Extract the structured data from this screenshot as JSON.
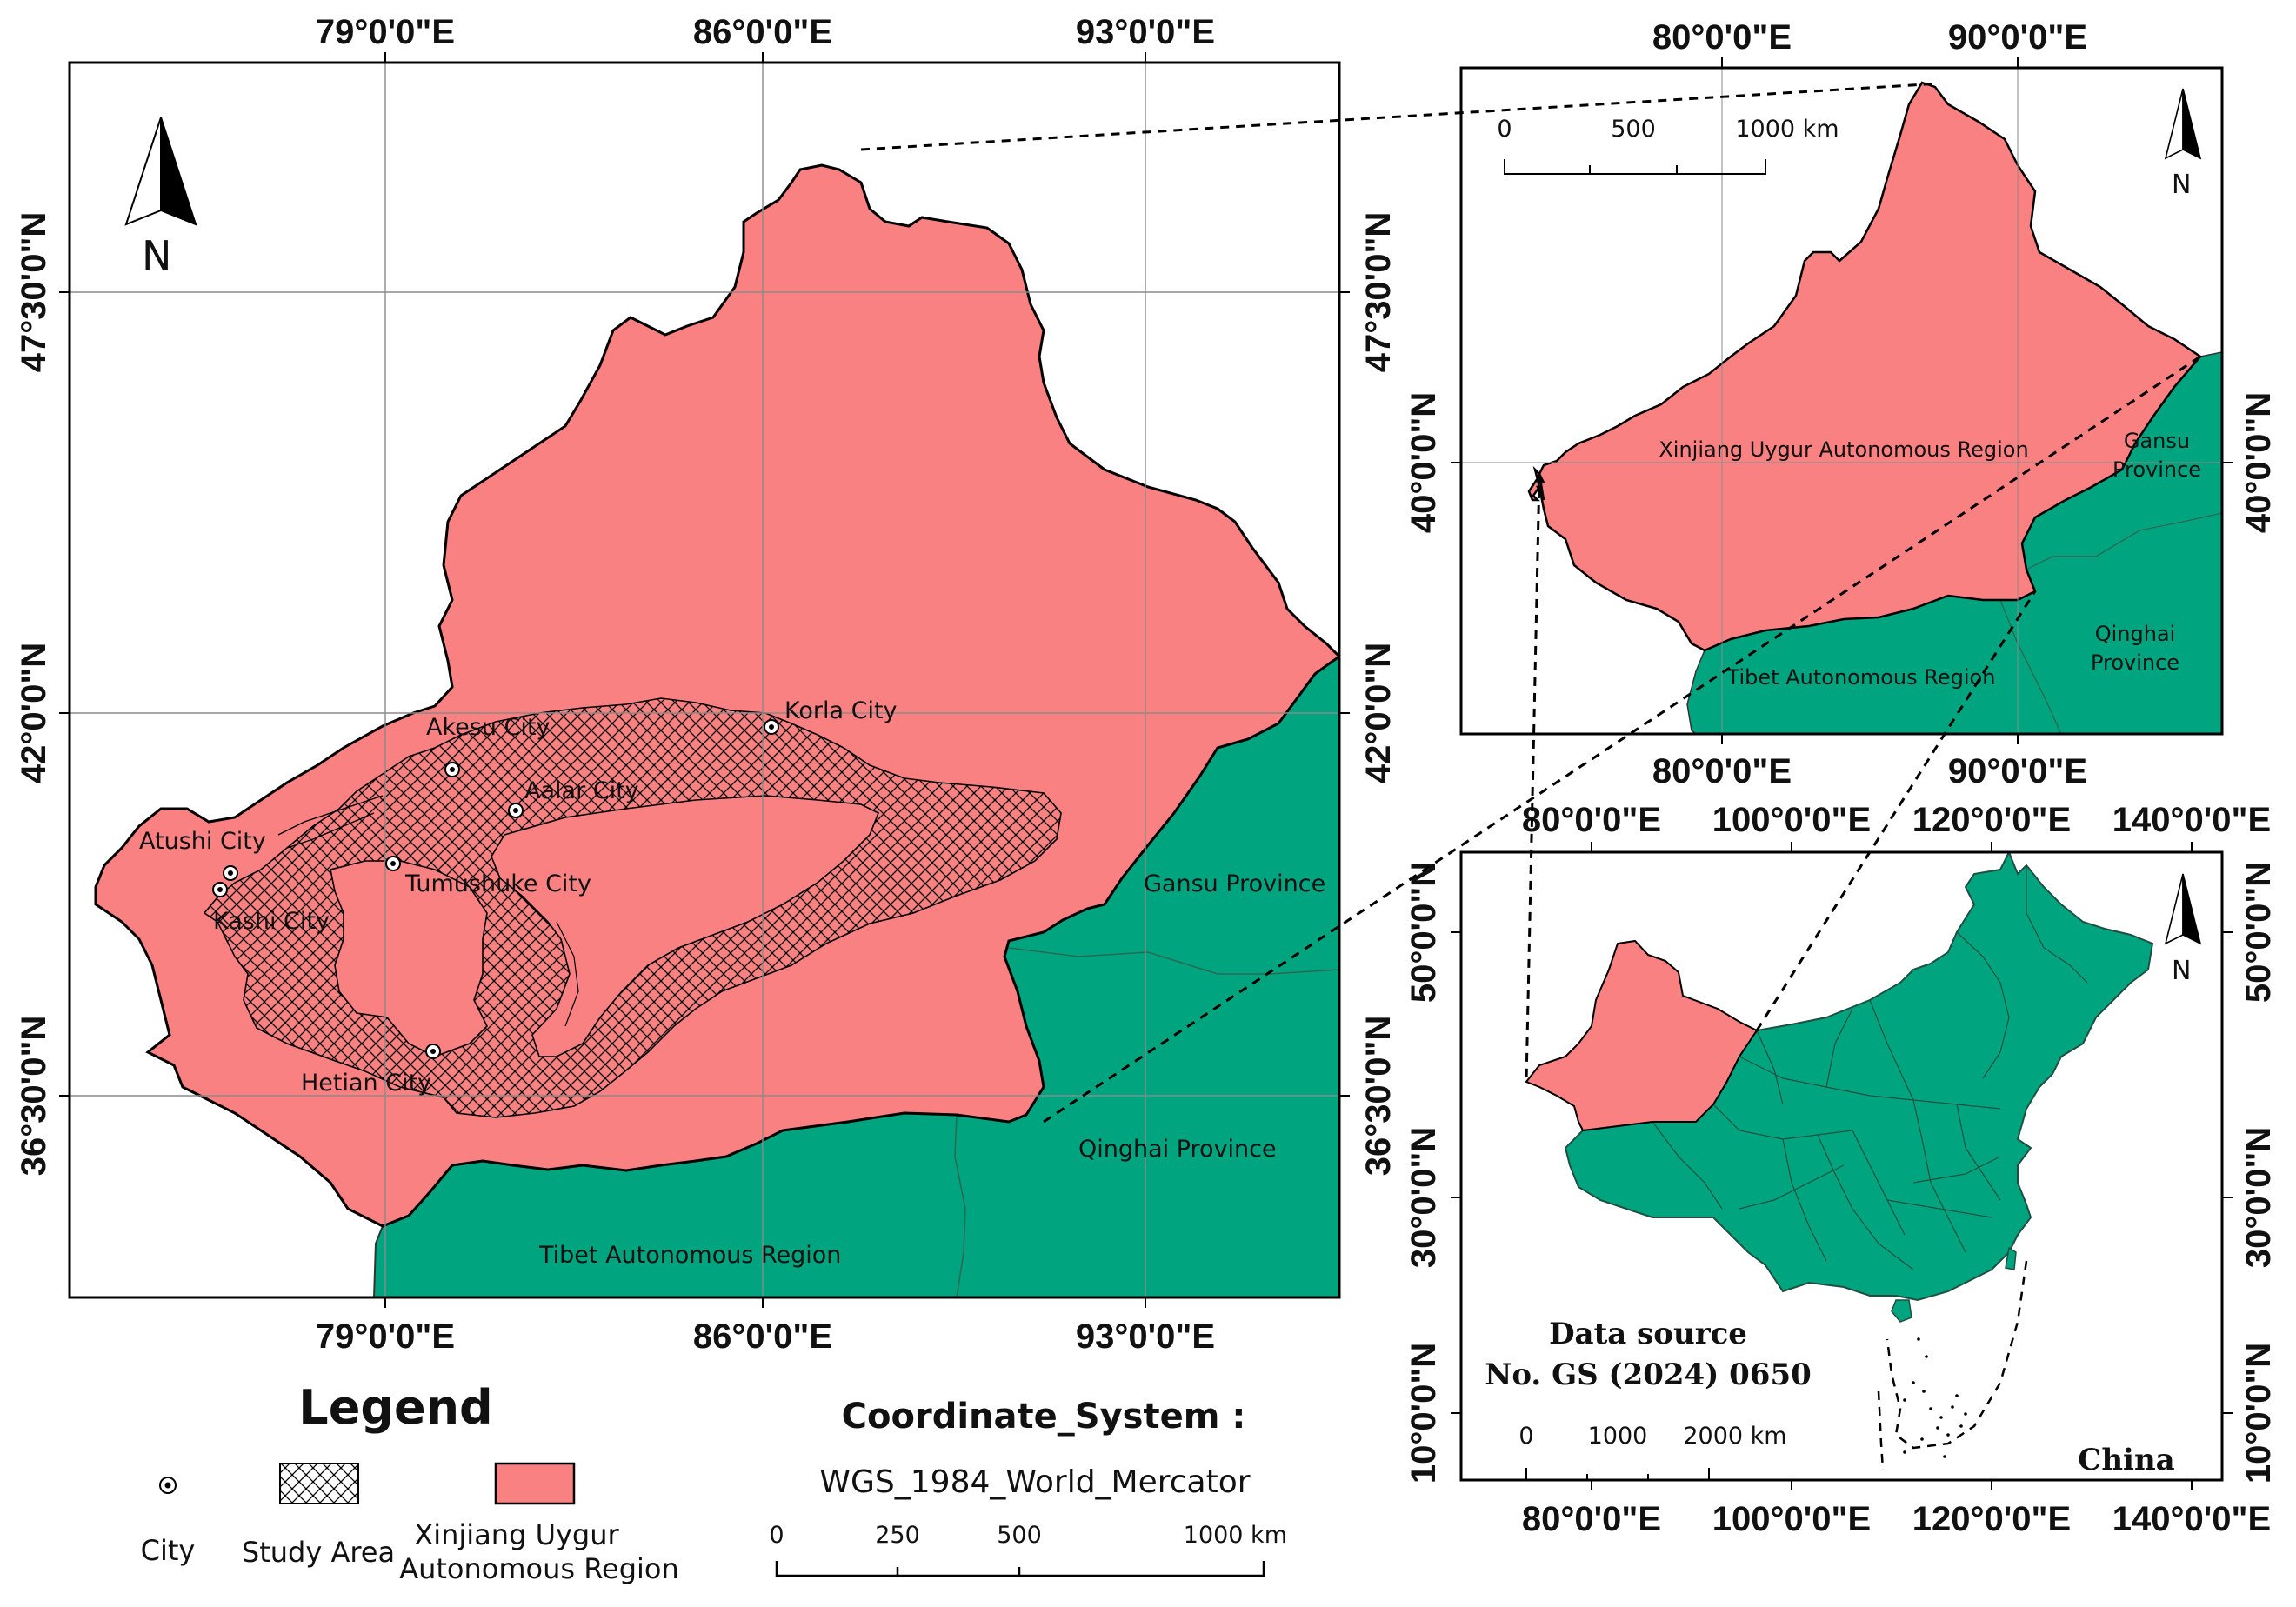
{
  "colors": {
    "xinjiang": "#f98182",
    "neighbor": "#00a57f",
    "border": "#000000",
    "grid": "#8a8a8a"
  },
  "main_map": {
    "top_ticks": [
      "79°0'0\"E",
      "86°0'0\"E",
      "93°0'0\"E"
    ],
    "bottom_ticks": [
      "79°0'0\"E",
      "86°0'0\"E",
      "93°0'0\"E"
    ],
    "left_ticks": [
      "47°30'0\"N",
      "42°0'0\"N",
      "36°30'0\"N"
    ],
    "right_ticks": [
      "47°30'0\"N",
      "42°0'0\"N",
      "36°30'0\"N"
    ],
    "north_label": "N",
    "cities": {
      "akesu": "Akesu City",
      "korla": "Korla City",
      "aalar": "Aalar City",
      "atushi": "Atushi City",
      "tumushuke": "Tumushuke City",
      "kashi": "Kashi City",
      "hetian": "Hetian City"
    },
    "regions": {
      "gansu": "Gansu Province",
      "qinghai": "Qinghai Province",
      "tibet": "Tibet Autonomous Region"
    }
  },
  "inset_top": {
    "top_ticks": [
      "80°0'0\"E",
      "90°0'0\"E"
    ],
    "bottom_ticks": [
      "80°0'0\"E",
      "90°0'0\"E"
    ],
    "left_ticks": [
      "40°0'0\"N"
    ],
    "right_ticks": [
      "40°0'0\"N"
    ],
    "scale": [
      "0",
      "500",
      "1000 km"
    ],
    "north_label": "N",
    "regions": {
      "xinjiang": "Xinjiang Uygur Autonomous Region",
      "gansu_1": "Gansu",
      "gansu_2": "Province",
      "qinghai_1": "Qinghai",
      "qinghai_2": "Province",
      "tibet": "Tibet Autonomous Region"
    }
  },
  "inset_china": {
    "top_ticks": [
      "80°0'0\"E",
      "100°0'0\"E",
      "120°0'0\"E",
      "140°0'0\"E"
    ],
    "bottom_ticks": [
      "80°0'0\"E",
      "100°0'0\"E",
      "120°0'0\"E",
      "140°0'0\"E"
    ],
    "left_ticks": [
      "50°0'0\"N",
      "30°0'0\"N",
      "10°0'0\"N"
    ],
    "right_ticks": [
      "50°0'0\"N",
      "30°0'0\"N",
      "10°0'0\"N"
    ],
    "source_line1": "Data source",
    "source_line2": "No. GS (2024) 0650",
    "scale": [
      "0",
      "1000",
      "2000 km"
    ],
    "country": "China",
    "north_label": "N"
  },
  "legend": {
    "title": "Legend",
    "city": "City",
    "study_area": "Study Area",
    "xinjiang_1": "Xinjiang Uygur",
    "xinjiang_2": "Autonomous Region"
  },
  "coordinate_system": {
    "title": "Coordinate_System :",
    "value": "WGS_1984_World_Mercator",
    "scale": [
      "0",
      "250",
      "500",
      "1000 km"
    ]
  }
}
